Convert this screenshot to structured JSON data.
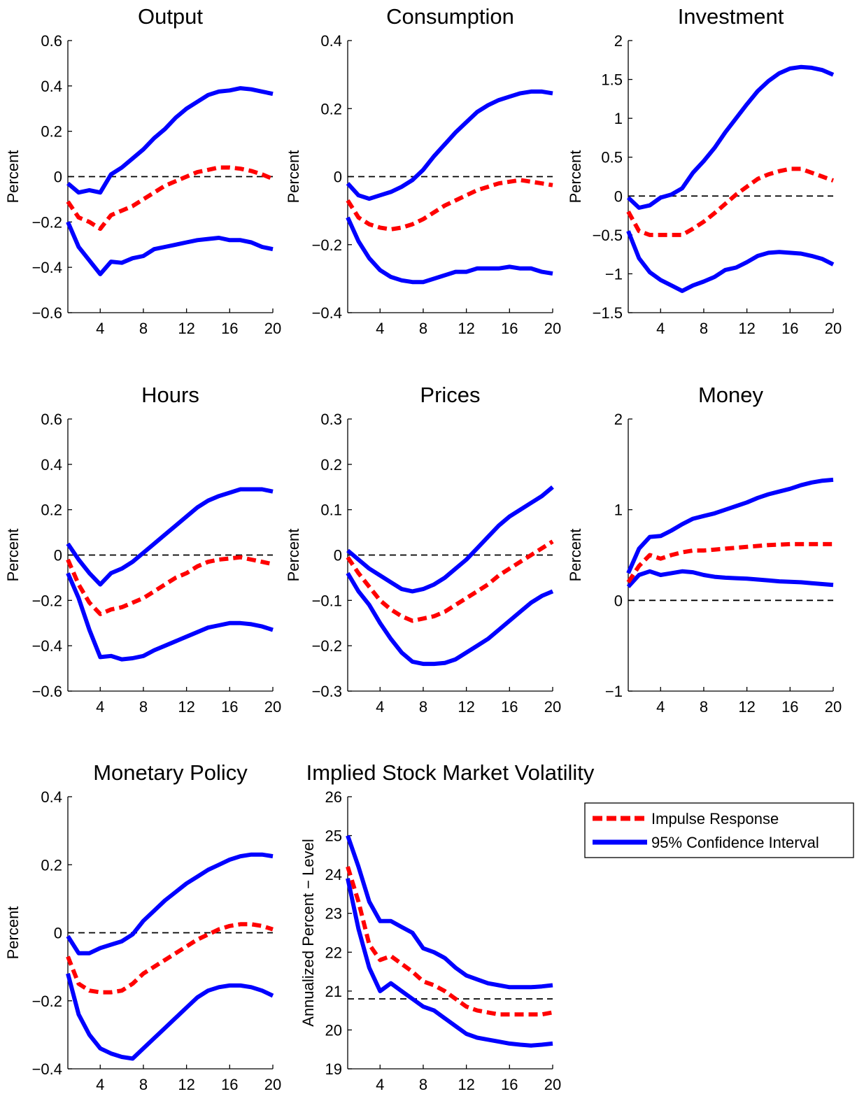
{
  "figure": {
    "legend": {
      "placement": "right of bottom row",
      "entries": [
        {
          "label": "Impulse Response",
          "style": "dashed",
          "color": "#ff0000"
        },
        {
          "label": "95% Confidence Interval",
          "style": "solid",
          "color": "#0000ff"
        }
      ]
    },
    "colors": {
      "impulse": "#ff0000",
      "confidence": "#0000ff",
      "zero_line": "#000000"
    }
  },
  "chart_data": [
    {
      "type": "line",
      "title": "Output",
      "xlabel": "",
      "ylabel": "Percent",
      "xlim": [
        1,
        20
      ],
      "ylim": [
        -0.6,
        0.6
      ],
      "xticks": [
        "4",
        "8",
        "12",
        "16",
        "20"
      ],
      "yticks": [
        "−0.6",
        "−0.4",
        "−0.2",
        "0",
        "0.2",
        "0.4",
        "0.6"
      ],
      "reference_line": 0,
      "grid": false,
      "x": [
        1,
        2,
        3,
        4,
        5,
        6,
        7,
        8,
        9,
        10,
        11,
        12,
        13,
        14,
        15,
        16,
        17,
        18,
        19,
        20
      ],
      "series": [
        {
          "name": "Impulse Response",
          "style": "dashed",
          "values": [
            -0.11,
            -0.18,
            -0.2,
            -0.23,
            -0.17,
            -0.15,
            -0.13,
            -0.1,
            -0.07,
            -0.04,
            -0.02,
            0.0,
            0.02,
            0.03,
            0.04,
            0.04,
            0.035,
            0.025,
            0.01,
            -0.01
          ]
        },
        {
          "name": "95% Confidence Interval",
          "style": "solid",
          "values": [
            -0.03,
            -0.07,
            -0.06,
            -0.07,
            0.01,
            0.04,
            0.08,
            0.12,
            0.17,
            0.21,
            0.26,
            0.3,
            0.33,
            0.36,
            0.375,
            0.38,
            0.39,
            0.385,
            0.375,
            0.365
          ]
        },
        {
          "name": "95% Confidence Interval",
          "style": "solid",
          "values": [
            -0.2,
            -0.31,
            -0.37,
            -0.43,
            -0.375,
            -0.38,
            -0.36,
            -0.35,
            -0.32,
            -0.31,
            -0.3,
            -0.29,
            -0.28,
            -0.275,
            -0.27,
            -0.28,
            -0.28,
            -0.29,
            -0.31,
            -0.32
          ]
        }
      ]
    },
    {
      "type": "line",
      "title": "Consumption",
      "xlabel": "",
      "ylabel": "Percent",
      "xlim": [
        1,
        20
      ],
      "ylim": [
        -0.4,
        0.4
      ],
      "xticks": [
        "4",
        "8",
        "12",
        "16",
        "20"
      ],
      "yticks": [
        "−0.4",
        "−0.2",
        "0",
        "0.2",
        "0.4"
      ],
      "reference_line": 0,
      "grid": false,
      "x": [
        1,
        2,
        3,
        4,
        5,
        6,
        7,
        8,
        9,
        10,
        11,
        12,
        13,
        14,
        15,
        16,
        17,
        18,
        19,
        20
      ],
      "series": [
        {
          "name": "Impulse Response",
          "style": "dashed",
          "values": [
            -0.07,
            -0.12,
            -0.14,
            -0.15,
            -0.155,
            -0.15,
            -0.14,
            -0.125,
            -0.105,
            -0.085,
            -0.07,
            -0.055,
            -0.04,
            -0.03,
            -0.02,
            -0.015,
            -0.01,
            -0.015,
            -0.02,
            -0.025
          ]
        },
        {
          "name": "95% Confidence Interval",
          "style": "solid",
          "values": [
            -0.02,
            -0.055,
            -0.065,
            -0.055,
            -0.045,
            -0.03,
            -0.01,
            0.02,
            0.06,
            0.095,
            0.13,
            0.16,
            0.19,
            0.21,
            0.225,
            0.235,
            0.245,
            0.25,
            0.25,
            0.245
          ]
        },
        {
          "name": "95% Confidence Interval",
          "style": "solid",
          "values": [
            -0.12,
            -0.19,
            -0.24,
            -0.275,
            -0.295,
            -0.305,
            -0.31,
            -0.31,
            -0.3,
            -0.29,
            -0.28,
            -0.28,
            -0.27,
            -0.27,
            -0.27,
            -0.265,
            -0.27,
            -0.27,
            -0.28,
            -0.285
          ]
        }
      ]
    },
    {
      "type": "line",
      "title": "Investment",
      "xlabel": "",
      "ylabel": "Percent",
      "xlim": [
        1,
        20
      ],
      "ylim": [
        -1.5,
        2
      ],
      "xticks": [
        "4",
        "8",
        "12",
        "16",
        "20"
      ],
      "yticks": [
        "−1.5",
        "−1",
        "−0.5",
        "0",
        "0.5",
        "1",
        "1.5",
        "2"
      ],
      "reference_line": 0,
      "grid": false,
      "x": [
        1,
        2,
        3,
        4,
        5,
        6,
        7,
        8,
        9,
        10,
        11,
        12,
        13,
        14,
        15,
        16,
        17,
        18,
        19,
        20
      ],
      "series": [
        {
          "name": "Impulse Response",
          "style": "dashed",
          "values": [
            -0.2,
            -0.45,
            -0.5,
            -0.5,
            -0.5,
            -0.5,
            -0.42,
            -0.33,
            -0.22,
            -0.1,
            0.02,
            0.12,
            0.22,
            0.28,
            0.32,
            0.35,
            0.35,
            0.3,
            0.25,
            0.2
          ]
        },
        {
          "name": "95% Confidence Interval",
          "style": "solid",
          "values": [
            -0.02,
            -0.15,
            -0.12,
            -0.02,
            0.02,
            0.1,
            0.3,
            0.45,
            0.62,
            0.82,
            1.0,
            1.18,
            1.35,
            1.48,
            1.58,
            1.64,
            1.66,
            1.65,
            1.62,
            1.56
          ]
        },
        {
          "name": "95% Confidence Interval",
          "style": "solid",
          "values": [
            -0.45,
            -0.8,
            -0.98,
            -1.08,
            -1.15,
            -1.22,
            -1.15,
            -1.1,
            -1.04,
            -0.95,
            -0.92,
            -0.85,
            -0.77,
            -0.73,
            -0.72,
            -0.73,
            -0.74,
            -0.77,
            -0.81,
            -0.88
          ]
        }
      ]
    },
    {
      "type": "line",
      "title": "Hours",
      "xlabel": "",
      "ylabel": "Percent",
      "xlim": [
        1,
        20
      ],
      "ylim": [
        -0.6,
        0.6
      ],
      "xticks": [
        "4",
        "8",
        "12",
        "16",
        "20"
      ],
      "yticks": [
        "−0.6",
        "−0.4",
        "−0.2",
        "0",
        "0.2",
        "0.4",
        "0.6"
      ],
      "reference_line": 0,
      "grid": false,
      "x": [
        1,
        2,
        3,
        4,
        5,
        6,
        7,
        8,
        9,
        10,
        11,
        12,
        13,
        14,
        15,
        16,
        17,
        18,
        19,
        20
      ],
      "series": [
        {
          "name": "Impulse Response",
          "style": "dashed",
          "values": [
            -0.02,
            -0.13,
            -0.21,
            -0.26,
            -0.24,
            -0.23,
            -0.21,
            -0.19,
            -0.16,
            -0.13,
            -0.1,
            -0.08,
            -0.05,
            -0.03,
            -0.02,
            -0.015,
            -0.01,
            -0.02,
            -0.03,
            -0.04
          ]
        },
        {
          "name": "95% Confidence Interval",
          "style": "solid",
          "values": [
            0.05,
            -0.02,
            -0.08,
            -0.13,
            -0.08,
            -0.06,
            -0.03,
            0.01,
            0.05,
            0.09,
            0.13,
            0.17,
            0.21,
            0.24,
            0.26,
            0.275,
            0.29,
            0.29,
            0.29,
            0.28
          ]
        },
        {
          "name": "95% Confidence Interval",
          "style": "solid",
          "values": [
            -0.08,
            -0.19,
            -0.33,
            -0.45,
            -0.445,
            -0.46,
            -0.455,
            -0.445,
            -0.42,
            -0.4,
            -0.38,
            -0.36,
            -0.34,
            -0.32,
            -0.31,
            -0.3,
            -0.3,
            -0.305,
            -0.315,
            -0.33
          ]
        }
      ]
    },
    {
      "type": "line",
      "title": "Prices",
      "xlabel": "",
      "ylabel": "Percent",
      "xlim": [
        1,
        20
      ],
      "ylim": [
        -0.3,
        0.3
      ],
      "xticks": [
        "4",
        "8",
        "12",
        "16",
        "20"
      ],
      "yticks": [
        "−0.3",
        "−0.2",
        "−0.1",
        "0",
        "0.1",
        "0.2",
        "0.3"
      ],
      "reference_line": 0,
      "grid": false,
      "x": [
        1,
        2,
        3,
        4,
        5,
        6,
        7,
        8,
        9,
        10,
        11,
        12,
        13,
        14,
        15,
        16,
        17,
        18,
        19,
        20
      ],
      "series": [
        {
          "name": "Impulse Response",
          "style": "dashed",
          "values": [
            -0.005,
            -0.04,
            -0.07,
            -0.1,
            -0.12,
            -0.135,
            -0.145,
            -0.14,
            -0.135,
            -0.125,
            -0.11,
            -0.095,
            -0.08,
            -0.065,
            -0.045,
            -0.03,
            -0.015,
            0.0,
            0.015,
            0.03
          ]
        },
        {
          "name": "95% Confidence Interval",
          "style": "solid",
          "values": [
            0.01,
            -0.01,
            -0.03,
            -0.045,
            -0.06,
            -0.075,
            -0.08,
            -0.075,
            -0.065,
            -0.05,
            -0.03,
            -0.01,
            0.015,
            0.04,
            0.065,
            0.085,
            0.1,
            0.115,
            0.13,
            0.15
          ]
        },
        {
          "name": "95% Confidence Interval",
          "style": "solid",
          "values": [
            -0.04,
            -0.08,
            -0.11,
            -0.15,
            -0.185,
            -0.215,
            -0.235,
            -0.24,
            -0.24,
            -0.238,
            -0.23,
            -0.215,
            -0.2,
            -0.185,
            -0.165,
            -0.145,
            -0.125,
            -0.105,
            -0.09,
            -0.08
          ]
        }
      ]
    },
    {
      "type": "line",
      "title": "Money",
      "xlabel": "",
      "ylabel": "Percent",
      "xlim": [
        1,
        20
      ],
      "ylim": [
        -1,
        2
      ],
      "xticks": [
        "4",
        "8",
        "12",
        "16",
        "20"
      ],
      "yticks": [
        "−1",
        "0",
        "1",
        "2"
      ],
      "reference_line": 0,
      "grid": false,
      "x": [
        1,
        2,
        3,
        4,
        5,
        6,
        7,
        8,
        9,
        10,
        11,
        12,
        13,
        14,
        15,
        16,
        17,
        18,
        19,
        20
      ],
      "series": [
        {
          "name": "Impulse Response",
          "style": "dashed",
          "values": [
            0.2,
            0.38,
            0.5,
            0.46,
            0.5,
            0.53,
            0.55,
            0.55,
            0.56,
            0.57,
            0.58,
            0.59,
            0.6,
            0.61,
            0.615,
            0.62,
            0.62,
            0.62,
            0.62,
            0.62
          ]
        },
        {
          "name": "95% Confidence Interval",
          "style": "solid",
          "values": [
            0.3,
            0.57,
            0.7,
            0.71,
            0.77,
            0.84,
            0.9,
            0.93,
            0.96,
            1.0,
            1.04,
            1.08,
            1.13,
            1.17,
            1.2,
            1.23,
            1.27,
            1.3,
            1.32,
            1.33
          ]
        },
        {
          "name": "95% Confidence Interval",
          "style": "solid",
          "values": [
            0.15,
            0.28,
            0.32,
            0.28,
            0.3,
            0.32,
            0.31,
            0.28,
            0.26,
            0.25,
            0.245,
            0.24,
            0.23,
            0.22,
            0.21,
            0.205,
            0.2,
            0.19,
            0.18,
            0.17
          ]
        }
      ]
    },
    {
      "type": "line",
      "title": "Monetary Policy",
      "xlabel": "",
      "ylabel": "Percent",
      "xlim": [
        1,
        20
      ],
      "ylim": [
        -0.4,
        0.4
      ],
      "xticks": [
        "4",
        "8",
        "12",
        "16",
        "20"
      ],
      "yticks": [
        "−0.4",
        "−0.2",
        "0",
        "0.2",
        "0.4"
      ],
      "reference_line": 0,
      "grid": false,
      "x": [
        1,
        2,
        3,
        4,
        5,
        6,
        7,
        8,
        9,
        10,
        11,
        12,
        13,
        14,
        15,
        16,
        17,
        18,
        19,
        20
      ],
      "series": [
        {
          "name": "Impulse Response",
          "style": "dashed",
          "values": [
            -0.07,
            -0.15,
            -0.17,
            -0.175,
            -0.175,
            -0.17,
            -0.15,
            -0.12,
            -0.1,
            -0.08,
            -0.06,
            -0.04,
            -0.02,
            -0.005,
            0.01,
            0.02,
            0.025,
            0.025,
            0.02,
            0.01
          ]
        },
        {
          "name": "95% Confidence Interval",
          "style": "solid",
          "values": [
            -0.01,
            -0.06,
            -0.06,
            -0.045,
            -0.035,
            -0.025,
            -0.005,
            0.035,
            0.065,
            0.095,
            0.12,
            0.145,
            0.165,
            0.185,
            0.2,
            0.215,
            0.225,
            0.23,
            0.23,
            0.225
          ]
        },
        {
          "name": "95% Confidence Interval",
          "style": "solid",
          "values": [
            -0.12,
            -0.24,
            -0.3,
            -0.34,
            -0.355,
            -0.365,
            -0.37,
            -0.34,
            -0.31,
            -0.28,
            -0.25,
            -0.22,
            -0.19,
            -0.17,
            -0.16,
            -0.155,
            -0.155,
            -0.16,
            -0.17,
            -0.185
          ]
        }
      ]
    },
    {
      "type": "line",
      "title": "Implied Stock Market Volatility",
      "xlabel": "",
      "ylabel": "Annualized Percent − Level",
      "xlim": [
        1,
        20
      ],
      "ylim": [
        19,
        26
      ],
      "xticks": [
        "4",
        "8",
        "12",
        "16",
        "20"
      ],
      "yticks": [
        "19",
        "20",
        "21",
        "22",
        "23",
        "24",
        "25",
        "26"
      ],
      "reference_line": 20.8,
      "grid": false,
      "x": [
        1,
        2,
        3,
        4,
        5,
        6,
        7,
        8,
        9,
        10,
        11,
        12,
        13,
        14,
        15,
        16,
        17,
        18,
        19,
        20
      ],
      "series": [
        {
          "name": "Impulse Response",
          "style": "dashed",
          "values": [
            24.2,
            23.3,
            22.2,
            21.8,
            21.9,
            21.7,
            21.5,
            21.25,
            21.15,
            21.0,
            20.8,
            20.6,
            20.5,
            20.45,
            20.4,
            20.4,
            20.4,
            20.4,
            20.4,
            20.45
          ]
        },
        {
          "name": "95% Confidence Interval",
          "style": "solid",
          "values": [
            25.0,
            24.2,
            23.3,
            22.8,
            22.8,
            22.65,
            22.5,
            22.1,
            22.0,
            21.85,
            21.6,
            21.4,
            21.3,
            21.2,
            21.15,
            21.1,
            21.1,
            21.1,
            21.12,
            21.15
          ]
        },
        {
          "name": "95% Confidence Interval",
          "style": "solid",
          "values": [
            23.9,
            22.6,
            21.6,
            21.0,
            21.2,
            21.0,
            20.8,
            20.6,
            20.5,
            20.3,
            20.1,
            19.9,
            19.8,
            19.75,
            19.7,
            19.65,
            19.62,
            19.6,
            19.62,
            19.65
          ]
        }
      ]
    }
  ]
}
